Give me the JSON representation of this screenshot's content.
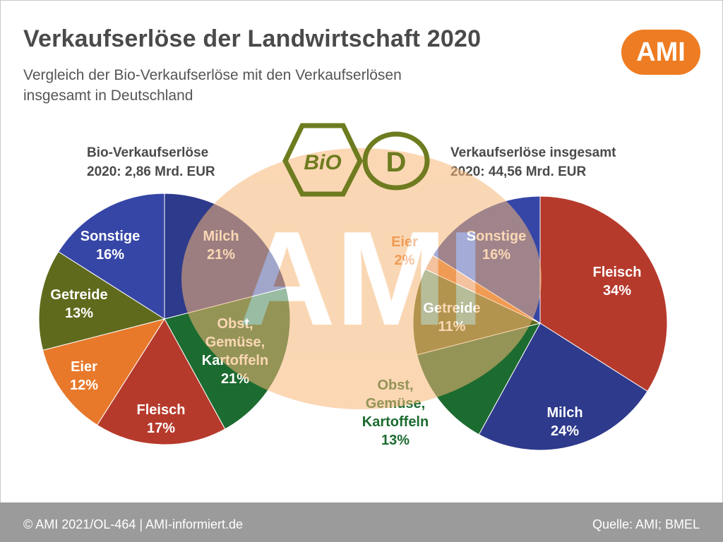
{
  "header": {
    "title": "Verkaufserlöse der Landwirtschaft 2020",
    "subtitle_line1": "Vergleich der Bio-Verkaufserlöse mit den Verkaufserlösen",
    "subtitle_line2": "insgesamt in Deutschland",
    "logo": "AMI"
  },
  "watermark": {
    "text": "AMI",
    "bio_seal": "BiO",
    "d_seal": "D"
  },
  "colors": {
    "Milch": "#2e3a8c",
    "Obst, Gemüse, Kartoffeln": "#1c6b30",
    "Fleisch": "#b63a2c",
    "Eier": "#e8792b",
    "Getreide": "#5f6a1c",
    "Sonstige": "#3646a6",
    "watermark": "#f7b777",
    "accent": "#ee7c22"
  },
  "chart_data": [
    {
      "type": "pie",
      "title_line1": "Bio-Verkaufserlöse",
      "title_line2": "2020: 2,86 Mrd. EUR",
      "slices": [
        {
          "label": "Milch",
          "label_lines": [
            "Milch"
          ],
          "value": 21,
          "value_label": "21%"
        },
        {
          "label": "Obst, Gemüse, Kartoffeln",
          "label_lines": [
            "Obst,",
            "Gemüse,",
            "Kartoffeln"
          ],
          "value": 21,
          "value_label": "21%"
        },
        {
          "label": "Fleisch",
          "label_lines": [
            "Fleisch"
          ],
          "value": 17,
          "value_label": "17%"
        },
        {
          "label": "Eier",
          "label_lines": [
            "Eier"
          ],
          "value": 12,
          "value_label": "12%"
        },
        {
          "label": "Getreide",
          "label_lines": [
            "Getreide"
          ],
          "value": 13,
          "value_label": "13%"
        },
        {
          "label": "Sonstige",
          "label_lines": [
            "Sonstige"
          ],
          "value": 16,
          "value_label": "16%"
        }
      ]
    },
    {
      "type": "pie",
      "title_line1": "Verkaufserlöse insgesamt",
      "title_line2": "2020: 44,56 Mrd. EUR",
      "slices": [
        {
          "label": "Fleisch",
          "label_lines": [
            "Fleisch"
          ],
          "value": 34,
          "value_label": "34%"
        },
        {
          "label": "Milch",
          "label_lines": [
            "Milch"
          ],
          "value": 24,
          "value_label": "24%"
        },
        {
          "label": "Obst, Gemüse, Kartoffeln",
          "label_lines": [
            "Obst,",
            "Gemüse,",
            "Kartoffeln"
          ],
          "value": 13,
          "value_label": "13%"
        },
        {
          "label": "Getreide",
          "label_lines": [
            "Getreide"
          ],
          "value": 11,
          "value_label": "11%"
        },
        {
          "label": "Eier",
          "label_lines": [
            "Eier"
          ],
          "value": 2,
          "value_label": "2%"
        },
        {
          "label": "Sonstige",
          "label_lines": [
            "Sonstige"
          ],
          "value": 16,
          "value_label": "16%"
        }
      ]
    }
  ],
  "footer": {
    "left": "© AMI 2021/OL-464 | AMI-informiert.de",
    "right": "Quelle: AMI; BMEL"
  }
}
